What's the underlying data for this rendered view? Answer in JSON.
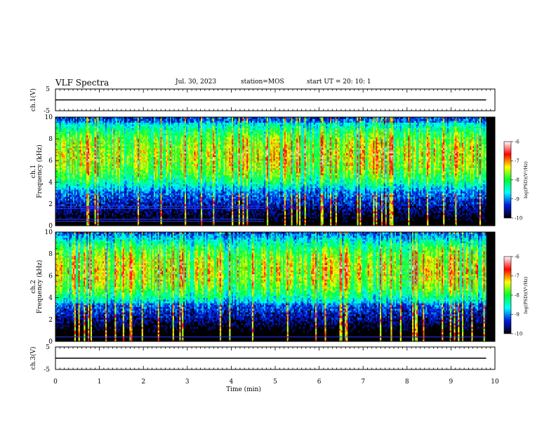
{
  "header": {
    "title": "VLF Spectra",
    "date": "Jul. 30, 2023",
    "station": "station=MOS",
    "start": "start UT = 20: 10: 1"
  },
  "colors": {
    "scale_stops": [
      "#000000",
      "#0018e0",
      "#00ffff",
      "#00ff30",
      "#ffff00",
      "#ff0000",
      "#ffffff"
    ]
  },
  "chart_data": [
    {
      "type": "line",
      "ylabel": "ch.1(V)",
      "ylim": [
        -5,
        5
      ],
      "yticks": [
        "5",
        "-5"
      ],
      "x": [
        0,
        9.8
      ],
      "values": [
        0,
        0
      ]
    },
    {
      "type": "heatmap",
      "ylabel": "ch.1\nFrequency (kHz)",
      "ylim": [
        0,
        10
      ],
      "yticks": [
        "0",
        "2",
        "4",
        "6",
        "8",
        "10"
      ],
      "colorbar": {
        "label": "log(PSD)(V²/Hz)",
        "ticks": [
          "-6",
          "-7",
          "-8",
          "-9",
          "-10"
        ],
        "range": [
          -10,
          -6
        ]
      },
      "band_center_kHz": 6.5,
      "band_low_kHz": 3.0,
      "band_high_kHz": 9.5,
      "lines_kHz": [
        0.4,
        0.6,
        1.6,
        1.8
      ],
      "line_end_min": 4.75
    },
    {
      "type": "heatmap",
      "ylabel": "ch.2\nFrequency (kHz)",
      "ylim": [
        0,
        10
      ],
      "yticks": [
        "0",
        "2",
        "4",
        "6",
        "8",
        "10"
      ],
      "colorbar": {
        "label": "log(PSD)(V²/Hz)",
        "ticks": [
          "-6",
          "-7",
          "-8",
          "-9",
          "-10"
        ],
        "range": [
          -10,
          -6
        ]
      },
      "band_center_kHz": 6.5,
      "band_low_kHz": 3.5,
      "band_high_kHz": 9.8,
      "lines_kHz": [
        0.4
      ],
      "line_end_min": 9.8
    },
    {
      "type": "line",
      "ylabel": "ch.3(V)",
      "ylim": [
        -5,
        5
      ],
      "yticks": [
        "5",
        "-5"
      ],
      "x": [
        0,
        9.8
      ],
      "values": [
        0,
        0
      ]
    }
  ],
  "xaxis": {
    "label": "Time (min)",
    "range": [
      0,
      10
    ],
    "ticks": [
      "0",
      "1",
      "2",
      "3",
      "4",
      "5",
      "6",
      "7",
      "8",
      "9",
      "10"
    ]
  }
}
